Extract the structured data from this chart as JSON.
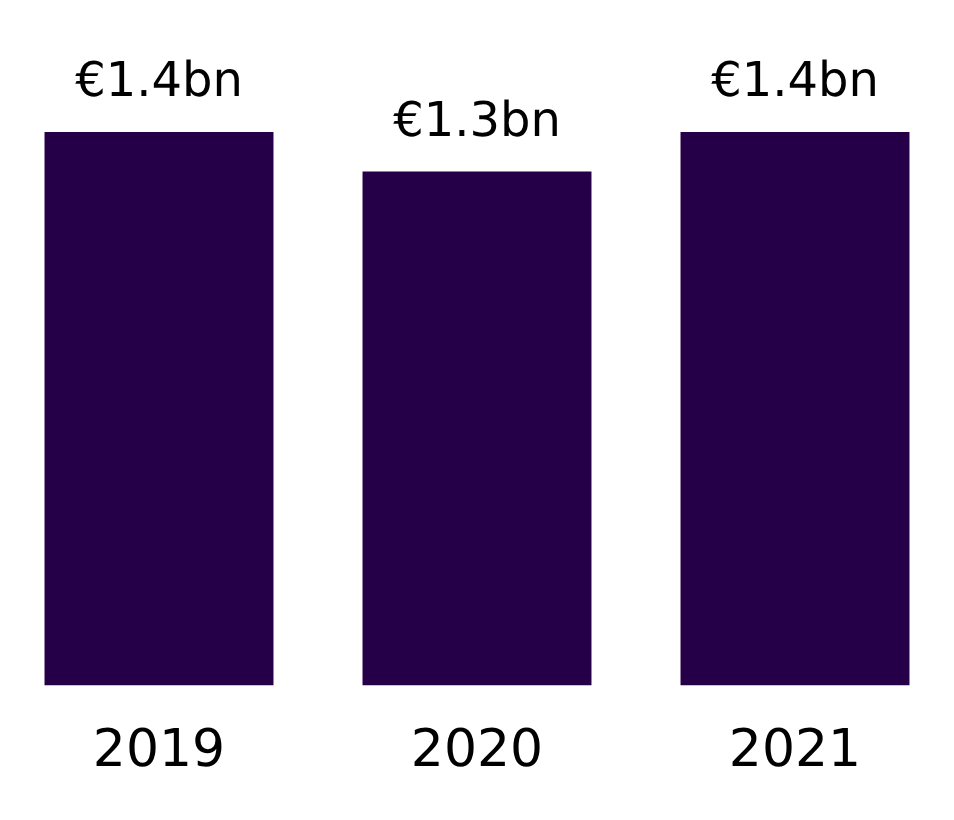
{
  "chart_data": {
    "type": "bar",
    "categories": [
      "2019",
      "2020",
      "2021"
    ],
    "values": [
      1.4,
      1.3,
      1.4
    ],
    "color": "#250048",
    "value_labels": [
      "€1.4bn",
      "€1.3bn",
      "€1.4bn"
    ],
    "grid": false,
    "legend": false
  }
}
